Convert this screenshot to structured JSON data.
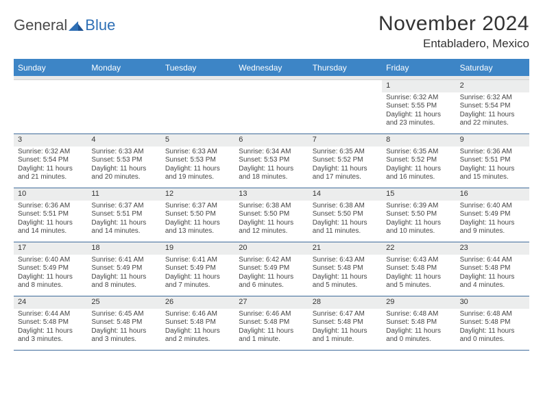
{
  "brand": {
    "name1": "General",
    "name2": "Blue",
    "colors": {
      "text": "#4a4a4a",
      "accent": "#2e6fb5",
      "header_bg": "#3d85c6"
    }
  },
  "title": "November 2024",
  "location": "Entabladero, Mexico",
  "day_names": [
    "Sunday",
    "Monday",
    "Tuesday",
    "Wednesday",
    "Thursday",
    "Friday",
    "Saturday"
  ],
  "weeks": [
    [
      {
        "n": "",
        "sunrise": "",
        "sunset": "",
        "daylight": ""
      },
      {
        "n": "",
        "sunrise": "",
        "sunset": "",
        "daylight": ""
      },
      {
        "n": "",
        "sunrise": "",
        "sunset": "",
        "daylight": ""
      },
      {
        "n": "",
        "sunrise": "",
        "sunset": "",
        "daylight": ""
      },
      {
        "n": "",
        "sunrise": "",
        "sunset": "",
        "daylight": ""
      },
      {
        "n": "1",
        "sunrise": "Sunrise: 6:32 AM",
        "sunset": "Sunset: 5:55 PM",
        "daylight": "Daylight: 11 hours and 23 minutes."
      },
      {
        "n": "2",
        "sunrise": "Sunrise: 6:32 AM",
        "sunset": "Sunset: 5:54 PM",
        "daylight": "Daylight: 11 hours and 22 minutes."
      }
    ],
    [
      {
        "n": "3",
        "sunrise": "Sunrise: 6:32 AM",
        "sunset": "Sunset: 5:54 PM",
        "daylight": "Daylight: 11 hours and 21 minutes."
      },
      {
        "n": "4",
        "sunrise": "Sunrise: 6:33 AM",
        "sunset": "Sunset: 5:53 PM",
        "daylight": "Daylight: 11 hours and 20 minutes."
      },
      {
        "n": "5",
        "sunrise": "Sunrise: 6:33 AM",
        "sunset": "Sunset: 5:53 PM",
        "daylight": "Daylight: 11 hours and 19 minutes."
      },
      {
        "n": "6",
        "sunrise": "Sunrise: 6:34 AM",
        "sunset": "Sunset: 5:53 PM",
        "daylight": "Daylight: 11 hours and 18 minutes."
      },
      {
        "n": "7",
        "sunrise": "Sunrise: 6:35 AM",
        "sunset": "Sunset: 5:52 PM",
        "daylight": "Daylight: 11 hours and 17 minutes."
      },
      {
        "n": "8",
        "sunrise": "Sunrise: 6:35 AM",
        "sunset": "Sunset: 5:52 PM",
        "daylight": "Daylight: 11 hours and 16 minutes."
      },
      {
        "n": "9",
        "sunrise": "Sunrise: 6:36 AM",
        "sunset": "Sunset: 5:51 PM",
        "daylight": "Daylight: 11 hours and 15 minutes."
      }
    ],
    [
      {
        "n": "10",
        "sunrise": "Sunrise: 6:36 AM",
        "sunset": "Sunset: 5:51 PM",
        "daylight": "Daylight: 11 hours and 14 minutes."
      },
      {
        "n": "11",
        "sunrise": "Sunrise: 6:37 AM",
        "sunset": "Sunset: 5:51 PM",
        "daylight": "Daylight: 11 hours and 14 minutes."
      },
      {
        "n": "12",
        "sunrise": "Sunrise: 6:37 AM",
        "sunset": "Sunset: 5:50 PM",
        "daylight": "Daylight: 11 hours and 13 minutes."
      },
      {
        "n": "13",
        "sunrise": "Sunrise: 6:38 AM",
        "sunset": "Sunset: 5:50 PM",
        "daylight": "Daylight: 11 hours and 12 minutes."
      },
      {
        "n": "14",
        "sunrise": "Sunrise: 6:38 AM",
        "sunset": "Sunset: 5:50 PM",
        "daylight": "Daylight: 11 hours and 11 minutes."
      },
      {
        "n": "15",
        "sunrise": "Sunrise: 6:39 AM",
        "sunset": "Sunset: 5:50 PM",
        "daylight": "Daylight: 11 hours and 10 minutes."
      },
      {
        "n": "16",
        "sunrise": "Sunrise: 6:40 AM",
        "sunset": "Sunset: 5:49 PM",
        "daylight": "Daylight: 11 hours and 9 minutes."
      }
    ],
    [
      {
        "n": "17",
        "sunrise": "Sunrise: 6:40 AM",
        "sunset": "Sunset: 5:49 PM",
        "daylight": "Daylight: 11 hours and 8 minutes."
      },
      {
        "n": "18",
        "sunrise": "Sunrise: 6:41 AM",
        "sunset": "Sunset: 5:49 PM",
        "daylight": "Daylight: 11 hours and 8 minutes."
      },
      {
        "n": "19",
        "sunrise": "Sunrise: 6:41 AM",
        "sunset": "Sunset: 5:49 PM",
        "daylight": "Daylight: 11 hours and 7 minutes."
      },
      {
        "n": "20",
        "sunrise": "Sunrise: 6:42 AM",
        "sunset": "Sunset: 5:49 PM",
        "daylight": "Daylight: 11 hours and 6 minutes."
      },
      {
        "n": "21",
        "sunrise": "Sunrise: 6:43 AM",
        "sunset": "Sunset: 5:48 PM",
        "daylight": "Daylight: 11 hours and 5 minutes."
      },
      {
        "n": "22",
        "sunrise": "Sunrise: 6:43 AM",
        "sunset": "Sunset: 5:48 PM",
        "daylight": "Daylight: 11 hours and 5 minutes."
      },
      {
        "n": "23",
        "sunrise": "Sunrise: 6:44 AM",
        "sunset": "Sunset: 5:48 PM",
        "daylight": "Daylight: 11 hours and 4 minutes."
      }
    ],
    [
      {
        "n": "24",
        "sunrise": "Sunrise: 6:44 AM",
        "sunset": "Sunset: 5:48 PM",
        "daylight": "Daylight: 11 hours and 3 minutes."
      },
      {
        "n": "25",
        "sunrise": "Sunrise: 6:45 AM",
        "sunset": "Sunset: 5:48 PM",
        "daylight": "Daylight: 11 hours and 3 minutes."
      },
      {
        "n": "26",
        "sunrise": "Sunrise: 6:46 AM",
        "sunset": "Sunset: 5:48 PM",
        "daylight": "Daylight: 11 hours and 2 minutes."
      },
      {
        "n": "27",
        "sunrise": "Sunrise: 6:46 AM",
        "sunset": "Sunset: 5:48 PM",
        "daylight": "Daylight: 11 hours and 1 minute."
      },
      {
        "n": "28",
        "sunrise": "Sunrise: 6:47 AM",
        "sunset": "Sunset: 5:48 PM",
        "daylight": "Daylight: 11 hours and 1 minute."
      },
      {
        "n": "29",
        "sunrise": "Sunrise: 6:48 AM",
        "sunset": "Sunset: 5:48 PM",
        "daylight": "Daylight: 11 hours and 0 minutes."
      },
      {
        "n": "30",
        "sunrise": "Sunrise: 6:48 AM",
        "sunset": "Sunset: 5:48 PM",
        "daylight": "Daylight: 11 hours and 0 minutes."
      }
    ]
  ]
}
